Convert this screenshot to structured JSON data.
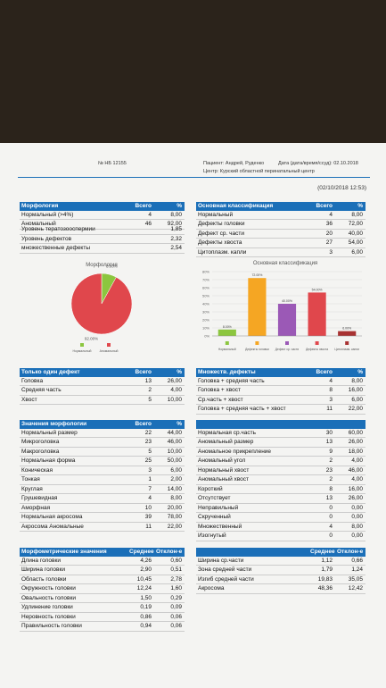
{
  "header": {
    "number": "№ НБ 12155",
    "patient": "Пациент: Андрей, Руденко",
    "date": "Дата (дата/время/ссуд): 02.10.2018",
    "center": "Центр: Курский областной перинатальный центр",
    "timestamp": "(02/10/2018 12:53)"
  },
  "tables": [
    {
      "header": [
        "Морфология",
        "Всего",
        "%"
      ],
      "rows": [
        [
          "Нормальный (>4%)",
          "4",
          "8,00"
        ],
        [
          "Аномальный",
          "46",
          "92,00"
        ]
      ]
    },
    {
      "rows": [
        [
          "Уровень тератозооспермии",
          "1,85"
        ],
        [
          "Уровень дефектов",
          "2,32"
        ],
        [
          "множественные дефекты",
          "2,54"
        ]
      ]
    },
    {
      "header": [
        "Основная классификация",
        "Всего",
        "%"
      ],
      "rows": [
        [
          "Нормальный",
          "4",
          "8,00"
        ],
        [
          "Дефекты головки",
          "36",
          "72,00"
        ],
        [
          "Дефект ср. части",
          "20",
          "40,00"
        ],
        [
          "Дефекты хвоста",
          "27",
          "54,00"
        ],
        [
          "Цитоплазм. капли",
          "3",
          "6,00"
        ]
      ]
    },
    {
      "header": [
        "Только один дефект",
        "Всего",
        "%"
      ],
      "rows": [
        [
          "Головка",
          "13",
          "26,00"
        ],
        [
          "Средняя часть",
          "2",
          "4,00"
        ],
        [
          "Хвост",
          "5",
          "10,00"
        ]
      ]
    },
    {
      "header": [
        "Множеств. дефекты",
        "Всего",
        "%"
      ],
      "rows": [
        [
          "Головка + средняя часть",
          "4",
          "8,00"
        ],
        [
          "Головка + хвост",
          "8",
          "16,00"
        ],
        [
          "Ср.часть + хвост",
          "3",
          "6,00"
        ],
        [
          "Головка + средняя часть + хвост",
          "11",
          "22,00"
        ]
      ]
    },
    {
      "header": [
        "Значения морфологии",
        "Всего",
        "%"
      ],
      "rows": [
        [
          "Нормальный размер",
          "22",
          "44,00"
        ],
        [
          "Микроголовка",
          "23",
          "46,00"
        ],
        [
          "Макроголовка",
          "5",
          "10,00"
        ],
        [
          "Нормальная форма",
          "25",
          "50,00"
        ],
        [
          "Коническая",
          "3",
          "6,00"
        ],
        [
          "Тонкая",
          "1",
          "2,00"
        ],
        [
          "Круглая",
          "7",
          "14,00"
        ],
        [
          "Грушевидная",
          "4",
          "8,00"
        ],
        [
          "Аморфная",
          "10",
          "20,00"
        ],
        [
          "Нормальная акросома",
          "39",
          "78,00"
        ],
        [
          "Акросома Аномальные",
          "11",
          "22,00"
        ]
      ]
    },
    {
      "rows": [
        [
          "Нормальная ср.часть",
          "30",
          "60,00"
        ],
        [
          "Аномальный размер",
          "13",
          "26,00"
        ],
        [
          "Аномальное прикрепление",
          "9",
          "18,00"
        ],
        [
          "Аномальный угол",
          "2",
          "4,00"
        ],
        [
          "Нормальный хвост",
          "23",
          "46,00"
        ],
        [
          "Аномальный хвост",
          "2",
          "4,00"
        ],
        [
          "Короткий",
          "8",
          "16,00"
        ],
        [
          "Отсутствует",
          "13",
          "26,00"
        ],
        [
          "Неправильный",
          "0",
          "0,00"
        ],
        [
          "Скрученный",
          "0",
          "0,00"
        ],
        [
          "Множественный",
          "4",
          "8,00"
        ],
        [
          "Изогнутый",
          "0",
          "0,00"
        ]
      ]
    },
    {
      "header": [
        "Морфометрические значения",
        "Среднее",
        "Отклон-е"
      ],
      "rows": [
        [
          "Длина головки",
          "4,26",
          "0,60"
        ],
        [
          "Ширина головки",
          "2,90",
          "0,51"
        ],
        [
          "Область головки",
          "10,45",
          "2,78"
        ],
        [
          "Окружность головки",
          "12,24",
          "1,60"
        ],
        [
          "Овальность головки",
          "1,50",
          "0,29"
        ],
        [
          "Удлинение головки",
          "0,19",
          "0,09"
        ],
        [
          "Неровность головки",
          "0,86",
          "0,06"
        ],
        [
          "Правильность головки",
          "0,94",
          "0,06"
        ]
      ]
    },
    {
      "header": [
        "Среднее",
        "Отклон-е"
      ],
      "rows": [
        [
          "Ширина ср.части",
          "1,12",
          "0,66"
        ],
        [
          "Зона средней части",
          "1,79",
          "1,24"
        ],
        [
          "Изгиб средней части",
          "19,83",
          "35,05"
        ],
        [
          "Акросома",
          "48,36",
          "12,42"
        ]
      ]
    }
  ],
  "chart_data": [
    {
      "type": "pie",
      "title": "Морфология",
      "categories": [
        "Нормальный",
        "Аномальный"
      ],
      "values": [
        8,
        92
      ],
      "value_labels": [
        "8.00%",
        "92.00%"
      ],
      "colors": [
        "#8cc63f",
        "#e0474c"
      ]
    },
    {
      "type": "bar",
      "title": "Основная классификация",
      "categories": [
        "Нормальный",
        "Дефекты головки",
        "Дефект ср. части",
        "Дефекты хвоста",
        "Цитоплазм. капли"
      ],
      "values": [
        8,
        72,
        40,
        54,
        6
      ],
      "value_labels": [
        "8.00%",
        "72.00%",
        "40.00%",
        "54.00%",
        "6.00%"
      ],
      "colors": [
        "#8cc63f",
        "#f5a623",
        "#9b59b6",
        "#e0474c",
        "#a83232"
      ],
      "ylim": [
        0,
        80
      ],
      "yticks": [
        {
          "value": 0,
          "label": "0%"
        },
        {
          "value": 10,
          "label": "10%"
        },
        {
          "value": 20,
          "label": "20%"
        },
        {
          "value": 30,
          "label": "30%"
        },
        {
          "value": 40,
          "label": "40%"
        },
        {
          "value": 50,
          "label": "50%"
        },
        {
          "value": 60,
          "label": "60%"
        },
        {
          "value": 70,
          "label": "70%"
        },
        {
          "value": 80,
          "label": "80%"
        }
      ],
      "grid": true
    }
  ]
}
